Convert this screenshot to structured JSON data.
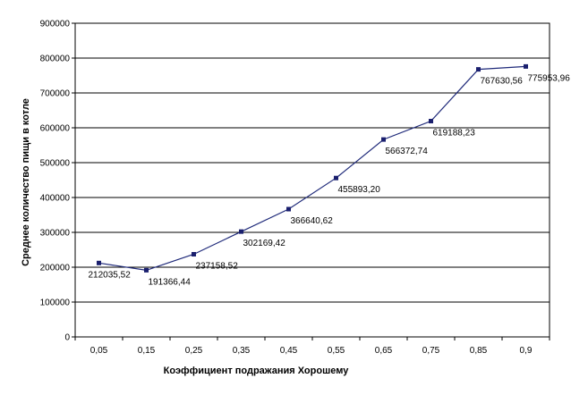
{
  "chart_data": {
    "type": "line",
    "title": "",
    "xlabel": "Коэффициент подражания Хорошему",
    "ylabel": "Среднее количество пищи в котле",
    "ylim": [
      0,
      900000
    ],
    "yticks": [
      0,
      100000,
      200000,
      300000,
      400000,
      500000,
      600000,
      700000,
      800000,
      900000
    ],
    "ytick_labels": [
      "0",
      "100000",
      "200000",
      "300000",
      "400000",
      "500000",
      "600000",
      "700000",
      "800000",
      "900000"
    ],
    "categories": [
      "0,05",
      "0,15",
      "0,25",
      "0,35",
      "0,45",
      "0,55",
      "0,65",
      "0,75",
      "0,85",
      "0,9"
    ],
    "series": [
      {
        "values": [
          212035.52,
          191366.44,
          237158.52,
          302169.42,
          366640.62,
          455893.2,
          566372.74,
          619188.23,
          767630.56,
          775953.96
        ],
        "labels": [
          "212035,52",
          "191366,44",
          "237158,52",
          "302169,42",
          "366640,62",
          "455893,20",
          "566372,74",
          "619188,23",
          "767630,56",
          "775953,96"
        ]
      }
    ],
    "grid": true,
    "legend": "none",
    "colors": {
      "line": "#1f2a7a",
      "marker": "#1a1f6e",
      "grid": "#000000",
      "background": "#ffffff"
    }
  }
}
